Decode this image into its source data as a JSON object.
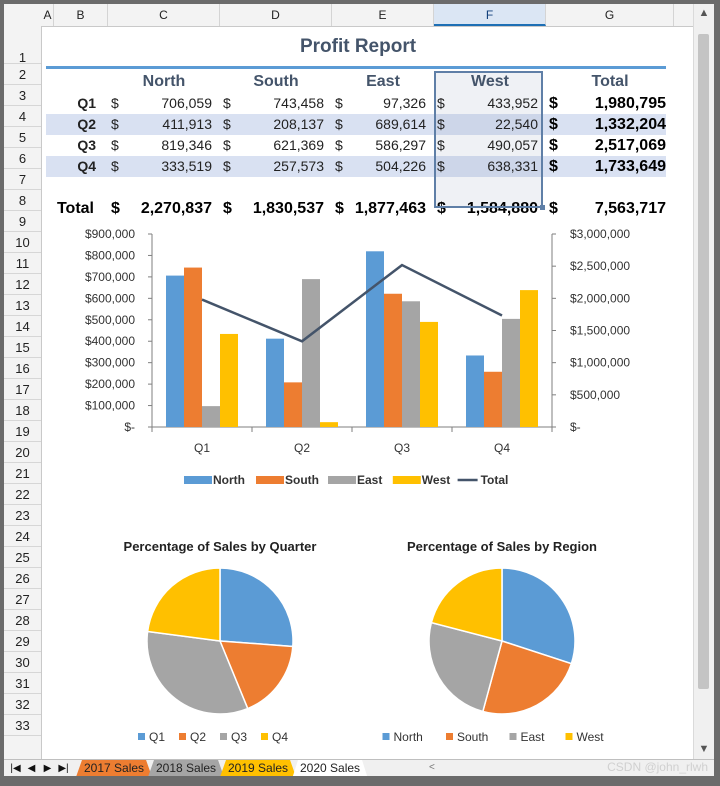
{
  "columns": [
    "A",
    "B",
    "C",
    "D",
    "E",
    "F",
    "G"
  ],
  "selected_column": "F",
  "rows": [
    "1",
    "2",
    "3",
    "4",
    "5",
    "6",
    "7",
    "8",
    "9",
    "10",
    "11",
    "12",
    "13",
    "14",
    "15",
    "16",
    "17",
    "18",
    "19",
    "20",
    "21",
    "22",
    "23",
    "24",
    "25",
    "26",
    "27",
    "28",
    "29",
    "30",
    "31",
    "32",
    "33"
  ],
  "title": "Profit Report",
  "table": {
    "headers": [
      "North",
      "South",
      "East",
      "West",
      "Total"
    ],
    "currency": "$",
    "rows": [
      {
        "label": "Q1",
        "values": [
          "706,059",
          "743,458",
          "97,326",
          "433,952",
          "1,980,795"
        ]
      },
      {
        "label": "Q2",
        "values": [
          "411,913",
          "208,137",
          "689,614",
          "22,540",
          "1,332,204"
        ]
      },
      {
        "label": "Q3",
        "values": [
          "819,346",
          "621,369",
          "586,297",
          "490,057",
          "2,517,069"
        ]
      },
      {
        "label": "Q4",
        "values": [
          "333,519",
          "257,573",
          "504,226",
          "638,331",
          "1,733,649"
        ]
      }
    ],
    "total_row": {
      "label": "Total",
      "values": [
        "2,270,837",
        "1,830,537",
        "1,877,463",
        "1,584,880",
        "7,563,717"
      ]
    }
  },
  "chart_data": [
    {
      "type": "bar",
      "categories": [
        "Q1",
        "Q2",
        "Q3",
        "Q4"
      ],
      "series": [
        {
          "name": "North",
          "values": [
            706059,
            411913,
            819346,
            333519
          ],
          "color": "#5b9bd5"
        },
        {
          "name": "South",
          "values": [
            743458,
            208137,
            621369,
            257573
          ],
          "color": "#ed7d31"
        },
        {
          "name": "East",
          "values": [
            97326,
            689614,
            586297,
            504226
          ],
          "color": "#a5a5a5"
        },
        {
          "name": "West",
          "values": [
            433952,
            22540,
            490057,
            638331
          ],
          "color": "#ffc000"
        },
        {
          "name": "Total",
          "type": "line",
          "axis": "secondary",
          "values": [
            1980795,
            1332204,
            2517069,
            1733649
          ],
          "color": "#44546a"
        }
      ],
      "ylim": [
        0,
        900000
      ],
      "y2lim": [
        0,
        3000000
      ],
      "yticks": [
        "$-",
        "$100,000",
        "$200,000",
        "$300,000",
        "$400,000",
        "$500,000",
        "$600,000",
        "$700,000",
        "$800,000",
        "$900,000"
      ],
      "y2ticks": [
        "$-",
        "$500,000",
        "$1,000,000",
        "$1,500,000",
        "$2,000,000",
        "$2,500,000",
        "$3,000,000"
      ],
      "legend": "bottom"
    },
    {
      "type": "pie",
      "title": "Percentage of Sales by Quarter",
      "labels": [
        "Q1",
        "Q2",
        "Q3",
        "Q4"
      ],
      "values": [
        1980795,
        1332204,
        2517069,
        1733649
      ],
      "colors": [
        "#5b9bd5",
        "#ed7d31",
        "#a5a5a5",
        "#ffc000"
      ],
      "legend": "bottom"
    },
    {
      "type": "pie",
      "title": "Percentage of Sales by Region",
      "labels": [
        "North",
        "South",
        "East",
        "West"
      ],
      "values": [
        2270837,
        1830537,
        1877463,
        1584880
      ],
      "colors": [
        "#5b9bd5",
        "#ed7d31",
        "#a5a5a5",
        "#ffc000"
      ],
      "legend": "bottom"
    }
  ],
  "sheet_tabs": [
    {
      "label": "2017 Sales",
      "color": "#ed7d31"
    },
    {
      "label": "2018 Sales",
      "color": "#a5a5a5"
    },
    {
      "label": "2019 Sales",
      "color": "#ffc000"
    },
    {
      "label": "2020 Sales",
      "color": "#ffffff"
    }
  ],
  "active_tab": "2020 Sales",
  "watermark": "CSDN @john_rlwh",
  "icons": {
    "first": "first-sheet-icon",
    "prev": "prev-sheet-icon",
    "next": "next-sheet-icon",
    "last": "last-sheet-icon"
  }
}
